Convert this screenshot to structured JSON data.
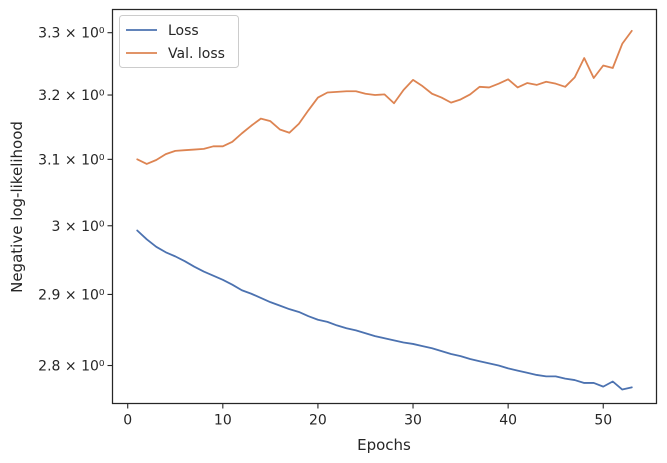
{
  "chart_data": {
    "type": "line",
    "xlabel": "Epochs",
    "ylabel": "Negative log-likelihood",
    "xlim": [
      -1.6,
      55.6
    ],
    "ylim": [
      2.748,
      3.338
    ],
    "yscale": "log",
    "xticks": [
      0,
      10,
      20,
      30,
      40,
      50
    ],
    "yticks": [
      {
        "value": 2.8,
        "label": "2.8 × 10⁰"
      },
      {
        "value": 2.9,
        "label": "2.9 × 10⁰"
      },
      {
        "value": 3.0,
        "label": "3 × 10⁰"
      },
      {
        "value": 3.1,
        "label": "3.1 × 10⁰"
      },
      {
        "value": 3.2,
        "label": "3.2 × 10⁰"
      },
      {
        "value": 3.3,
        "label": "3.3 × 10⁰"
      }
    ],
    "legend_position": "top-left",
    "x": [
      1,
      2,
      3,
      4,
      5,
      6,
      7,
      8,
      9,
      10,
      11,
      12,
      13,
      14,
      15,
      16,
      17,
      18,
      19,
      20,
      21,
      22,
      23,
      24,
      25,
      26,
      27,
      28,
      29,
      30,
      31,
      32,
      33,
      34,
      35,
      36,
      37,
      38,
      39,
      40,
      41,
      42,
      43,
      44,
      45,
      46,
      47,
      48,
      49,
      50,
      51,
      52,
      53
    ],
    "series": [
      {
        "name": "Loss",
        "color": "#4c72b0",
        "values": [
          2.993,
          2.98,
          2.969,
          2.961,
          2.955,
          2.948,
          2.94,
          2.933,
          2.927,
          2.921,
          2.914,
          2.906,
          2.901,
          2.895,
          2.889,
          2.884,
          2.879,
          2.875,
          2.869,
          2.864,
          2.861,
          2.856,
          2.852,
          2.849,
          2.845,
          2.841,
          2.838,
          2.835,
          2.832,
          2.83,
          2.827,
          2.824,
          2.82,
          2.816,
          2.813,
          2.809,
          2.806,
          2.803,
          2.8,
          2.796,
          2.793,
          2.79,
          2.787,
          2.785,
          2.785,
          2.782,
          2.78,
          2.776,
          2.776,
          2.771,
          2.778,
          2.767,
          2.77
        ]
      },
      {
        "name": "Val. loss",
        "color": "#dd8452",
        "values": [
          3.1,
          3.093,
          3.099,
          3.108,
          3.113,
          3.114,
          3.115,
          3.116,
          3.12,
          3.12,
          3.127,
          3.14,
          3.152,
          3.163,
          3.159,
          3.146,
          3.141,
          3.155,
          3.176,
          3.196,
          3.204,
          3.205,
          3.206,
          3.206,
          3.202,
          3.2,
          3.201,
          3.187,
          3.208,
          3.224,
          3.214,
          3.202,
          3.196,
          3.188,
          3.193,
          3.201,
          3.213,
          3.212,
          3.218,
          3.225,
          3.212,
          3.219,
          3.216,
          3.221,
          3.218,
          3.213,
          3.228,
          3.259,
          3.227,
          3.247,
          3.243,
          3.282,
          3.303
        ]
      }
    ]
  }
}
